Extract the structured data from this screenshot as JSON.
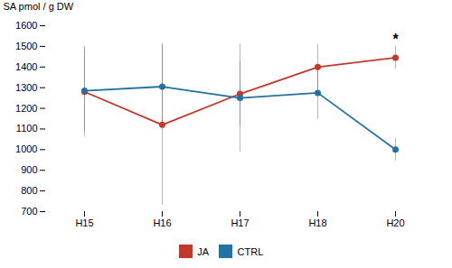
{
  "chart_data": {
    "type": "line",
    "categories": [
      "H15",
      "H16",
      "H17",
      "H18",
      "H20"
    ],
    "series": [
      {
        "name": "JA",
        "color": "#c0392b",
        "marker": "circle",
        "values": [
          1280,
          1120,
          1270,
          1400,
          1445
        ],
        "errors": [
          220,
          390,
          155,
          110,
          55
        ]
      },
      {
        "name": "CTRL",
        "color": "#2471a3",
        "marker": "circle",
        "values": [
          1285,
          1305,
          1250,
          1275,
          1000
        ],
        "errors": [
          200,
          205,
          260,
          130,
          55
        ]
      }
    ],
    "ylabel": "SA pmol / g DW",
    "ylim": [
      700,
      1600
    ],
    "yticks": [
      700,
      800,
      900,
      1000,
      1100,
      1200,
      1300,
      1400,
      1500,
      1600
    ],
    "grid": false,
    "legend": "bottom",
    "annotations": [
      {
        "text": "*",
        "x": "H20",
        "y": 1510
      }
    ]
  }
}
